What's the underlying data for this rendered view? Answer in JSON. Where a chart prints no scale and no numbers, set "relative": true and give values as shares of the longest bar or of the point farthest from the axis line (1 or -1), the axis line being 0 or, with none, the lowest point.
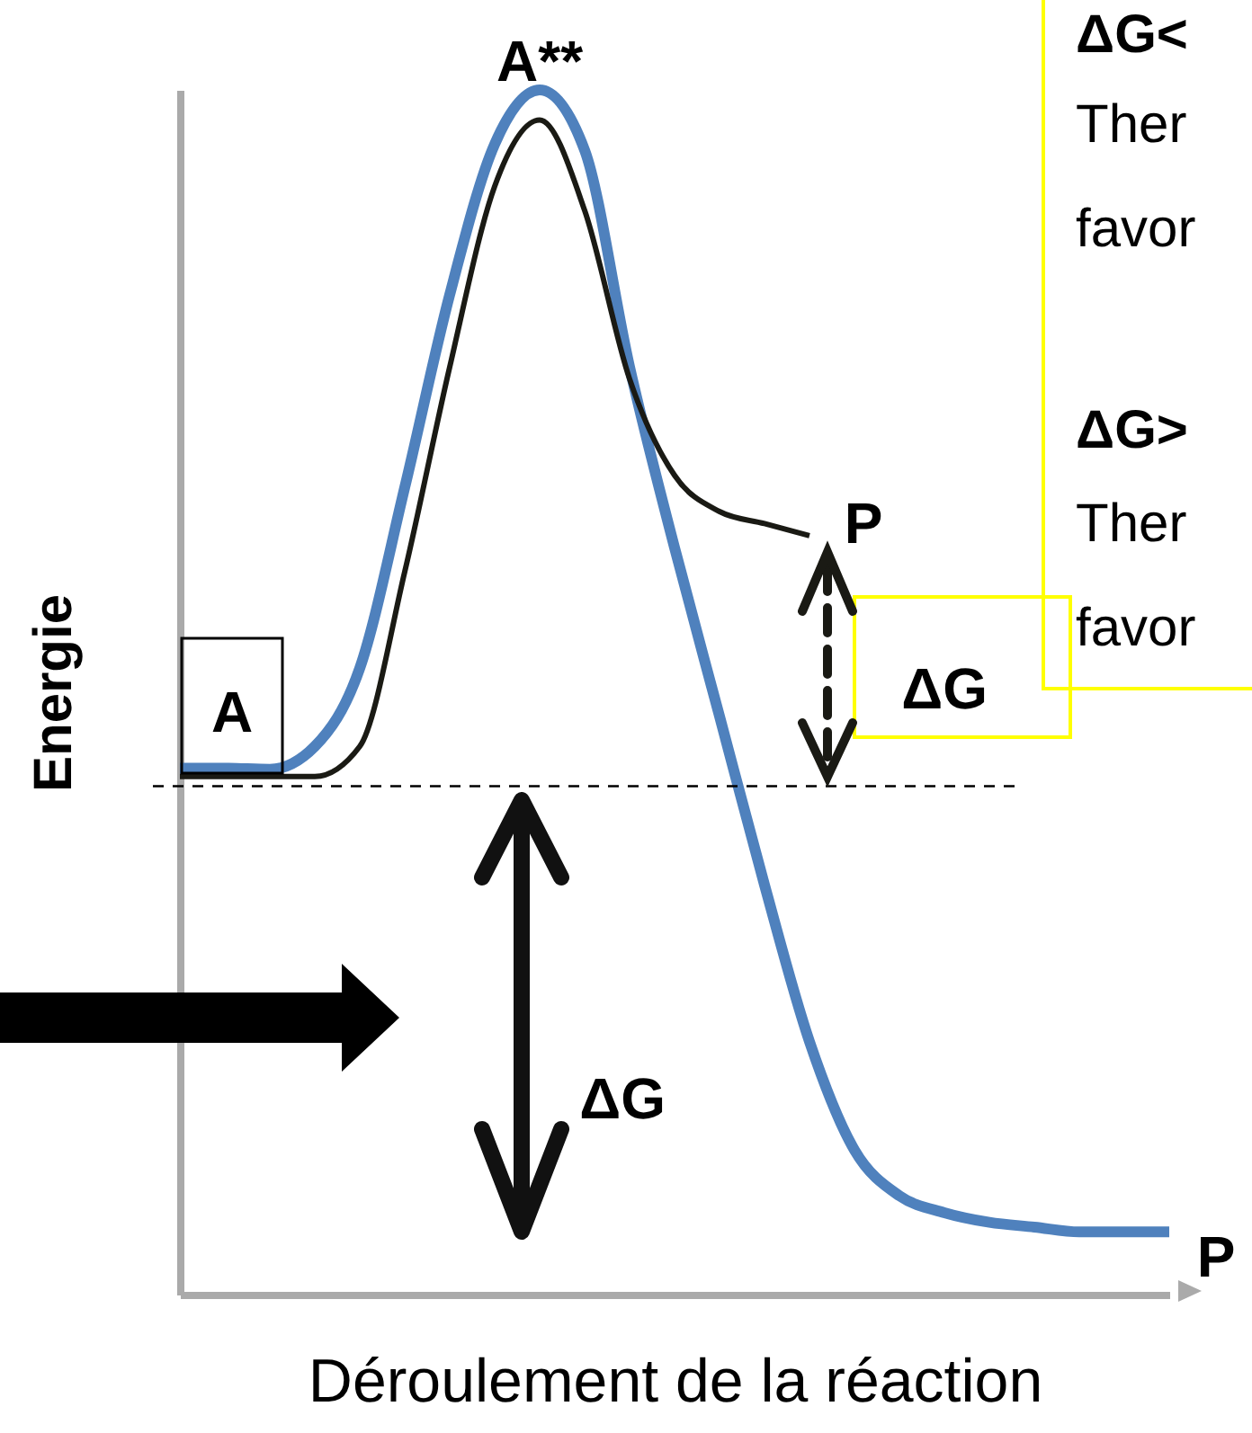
{
  "chart_data": {
    "type": "line",
    "relative": true,
    "xlabel": "Déroulement de la réaction",
    "ylabel": "Energie",
    "line_style": "solid",
    "marker": "none",
    "categories": [
      null,
      null,
      null,
      null,
      null,
      null,
      null,
      null,
      null,
      null,
      null,
      null,
      null,
      null,
      null,
      null,
      null,
      null,
      null,
      null,
      null,
      null,
      null
    ],
    "series": [
      {
        "color": "#4f81bd",
        "values": [
          0.437,
          0.437,
          0.436,
          0.455,
          0.52,
          0.67,
          0.83,
          0.955,
          1,
          0.95,
          0.77,
          0.62,
          0.48,
          0.34,
          0.21,
          0.12,
          0.082,
          0.068,
          0.06,
          0.056,
          0.052,
          0.052,
          0.052
        ]
      },
      {
        "color": "#1a1a14",
        "values": [
          0.43,
          0.43,
          0.43,
          0.43,
          0.455,
          0.6,
          0.77,
          0.92,
          0.975,
          0.9,
          0.76,
          0.68,
          0.65,
          0.64,
          0.63,
          null,
          null,
          null,
          null,
          null,
          null,
          null,
          null
        ]
      }
    ],
    "ref_lines": [
      {
        "axis": "y",
        "value": 0.422,
        "line_style": "dashed",
        "color": "#000000"
      }
    ],
    "annotations": [
      "A**",
      "A",
      "P",
      "P",
      "ΔG",
      "ΔG",
      "ΔG<",
      "Ther",
      "favor",
      "ΔG>",
      "Ther",
      "favor"
    ]
  }
}
